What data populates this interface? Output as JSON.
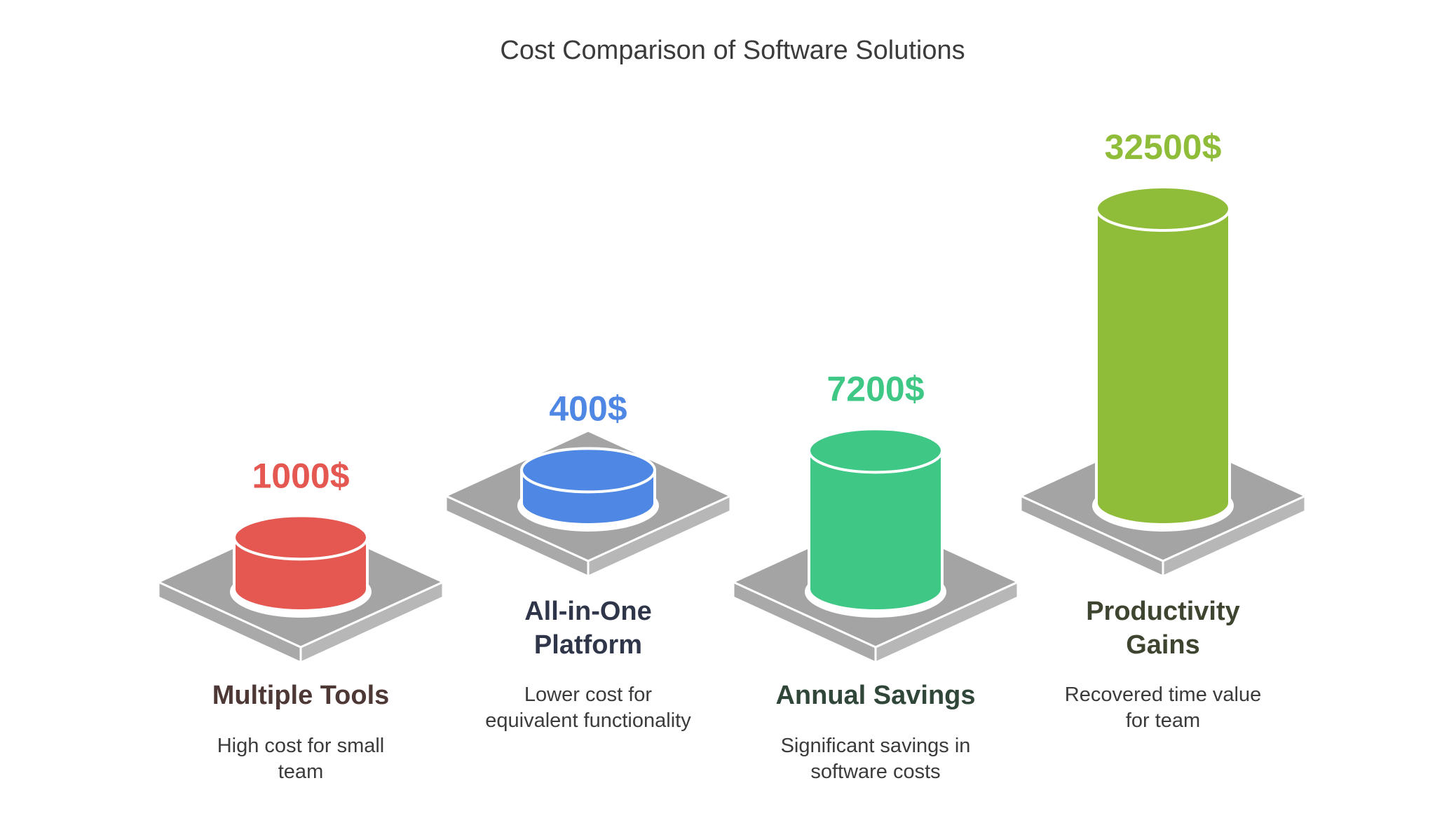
{
  "title": "Cost Comparison of Software Solutions",
  "chart_data": {
    "type": "bar",
    "style": "3d-cylinders-on-platforms",
    "title": "Cost Comparison of Software Solutions",
    "categories": [
      "Multiple Tools",
      "All-in-One Platform",
      "Annual Savings",
      "Productivity Gains"
    ],
    "values": [
      1000,
      400,
      7200,
      32500
    ],
    "value_labels": [
      "1000$",
      "400$",
      "7200$",
      "32500$"
    ],
    "descriptions": [
      "High cost for small team",
      "Lower cost for equivalent functionality",
      "Significant savings in software costs",
      "Recovered time value for team"
    ],
    "colors": [
      "#e55852",
      "#4f87e4",
      "#3ec785",
      "#8fbd3a"
    ],
    "label_colors": [
      "#4d3836",
      "#2f3649",
      "#2f4639",
      "#3d4530"
    ]
  }
}
